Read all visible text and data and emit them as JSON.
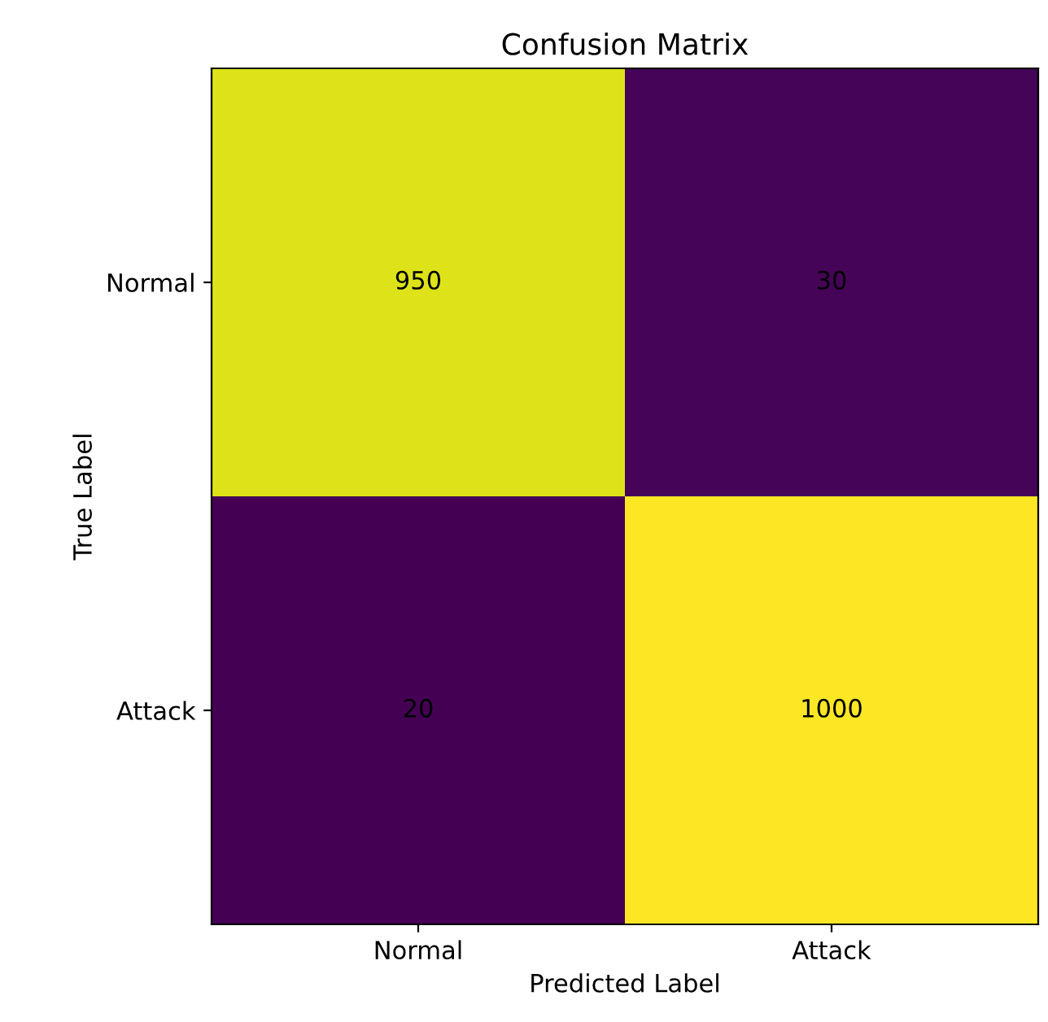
{
  "chart_data": {
    "type": "heatmap",
    "title": "Confusion Matrix",
    "xlabel": "Predicted Label",
    "ylabel": "True Label",
    "categories": [
      "Normal",
      "Attack"
    ],
    "y_categories": [
      "Normal",
      "Attack"
    ],
    "cells": [
      [
        950,
        30
      ],
      [
        20,
        1000
      ]
    ],
    "data_labels": true,
    "grid": false
  }
}
